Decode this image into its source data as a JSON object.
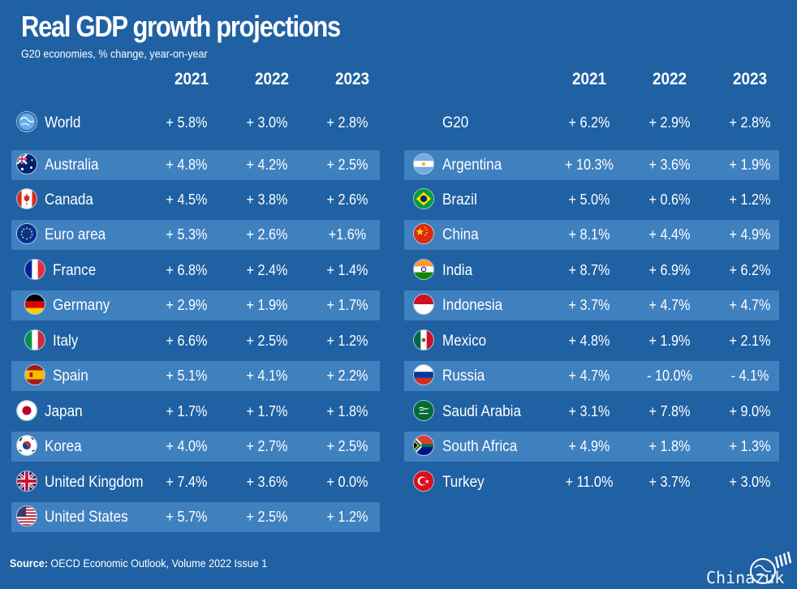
{
  "title": "Real GDP growth projections",
  "subtitle": "G20 economies, % change, year-on-year",
  "years": [
    "2021",
    "2022",
    "2023"
  ],
  "source_label": "Source:",
  "source_text": " OECD Economic Outlook, Volume 2022 Issue 1",
  "watermark": "Chinazuk",
  "colors": {
    "background": "#1f61a3",
    "stripe": "#3f80bf",
    "text": "#ffffff"
  },
  "chart_data": {
    "type": "table",
    "columns": [
      "2021",
      "2022",
      "2023"
    ],
    "left": [
      {
        "name": "World",
        "icon": "globe-icon",
        "values": [
          "+ 5.8%",
          "+ 3.0%",
          "+ 2.8%"
        ]
      },
      {
        "name": "Australia",
        "icon": "australia-flag-icon",
        "values": [
          "+ 4.8%",
          "+ 4.2%",
          "+ 2.5%"
        ]
      },
      {
        "name": "Canada",
        "icon": "canada-flag-icon",
        "values": [
          "+ 4.5%",
          "+  3.8%",
          "+ 2.6%"
        ]
      },
      {
        "name": "Euro area",
        "icon": "eu-flag-icon",
        "values": [
          "+ 5.3%",
          "+ 2.6%",
          "+1.6%"
        ]
      },
      {
        "name": "France",
        "icon": "france-flag-icon",
        "values": [
          "+ 6.8%",
          "+ 2.4%",
          "+ 1.4%"
        ]
      },
      {
        "name": "Germany",
        "icon": "germany-flag-icon",
        "values": [
          "+ 2.9%",
          "+ 1.9%",
          "+ 1.7%"
        ]
      },
      {
        "name": "Italy",
        "icon": "italy-flag-icon",
        "values": [
          "+ 6.6%",
          "+ 2.5%",
          "+ 1.2%"
        ]
      },
      {
        "name": "Spain",
        "icon": "spain-flag-icon",
        "values": [
          "+ 5.1%",
          "+ 4.1%",
          "+ 2.2%"
        ]
      },
      {
        "name": "Japan",
        "icon": "japan-flag-icon",
        "values": [
          "+ 1.7%",
          "+ 1.7%",
          "+ 1.8%"
        ]
      },
      {
        "name": "Korea",
        "icon": "korea-flag-icon",
        "values": [
          "+ 4.0%",
          "+ 2.7%",
          "+ 2.5%"
        ]
      },
      {
        "name": "United Kingdom",
        "icon": "uk-flag-icon",
        "values": [
          "+ 7.4%",
          "+ 3.6%",
          "+ 0.0%"
        ]
      },
      {
        "name": "United States",
        "icon": "usa-flag-icon",
        "values": [
          "+ 5.7%",
          "+ 2.5%",
          "+ 1.2%"
        ]
      }
    ],
    "right": [
      {
        "name": "G20",
        "icon": "",
        "values": [
          "+ 6.2%",
          "+ 2.9%",
          "+  2.8%"
        ]
      },
      {
        "name": "Argentina",
        "icon": "argentina-flag-icon",
        "values": [
          "+ 10.3%",
          "+ 3.6%",
          "+ 1.9%"
        ]
      },
      {
        "name": "Brazil",
        "icon": "brazil-flag-icon",
        "values": [
          "+ 5.0%",
          "+ 0.6%",
          "+ 1.2%"
        ]
      },
      {
        "name": "China",
        "icon": "china-flag-icon",
        "values": [
          "+ 8.1%",
          "+ 4.4%",
          "+ 4.9%"
        ]
      },
      {
        "name": "India",
        "icon": "india-flag-icon",
        "values": [
          "+ 8.7%",
          "+ 6.9%",
          "+ 6.2%"
        ]
      },
      {
        "name": "Indonesia",
        "icon": "indonesia-flag-icon",
        "values": [
          "+ 3.7%",
          "+ 4.7%",
          "+ 4.7%"
        ]
      },
      {
        "name": "Mexico",
        "icon": "mexico-flag-icon",
        "values": [
          "+ 4.8%",
          "+ 1.9%",
          "+ 2.1%"
        ]
      },
      {
        "name": "Russia",
        "icon": "russia-flag-icon",
        "values": [
          "+ 4.7%",
          "- 10.0%",
          "- 4.1%"
        ]
      },
      {
        "name": "Saudi Arabia",
        "icon": "saudi-arabia-flag-icon",
        "values": [
          "+ 3.1%",
          "+ 7.8%",
          "+ 9.0%"
        ]
      },
      {
        "name": "South Africa",
        "icon": "south-africa-flag-icon",
        "values": [
          "+ 4.9%",
          "+ 1.8%",
          "+ 1.3%"
        ]
      },
      {
        "name": "Turkey",
        "icon": "turkey-flag-icon",
        "values": [
          "+  11.0%",
          "+ 3.7%",
          "+ 3.0%"
        ]
      }
    ]
  }
}
